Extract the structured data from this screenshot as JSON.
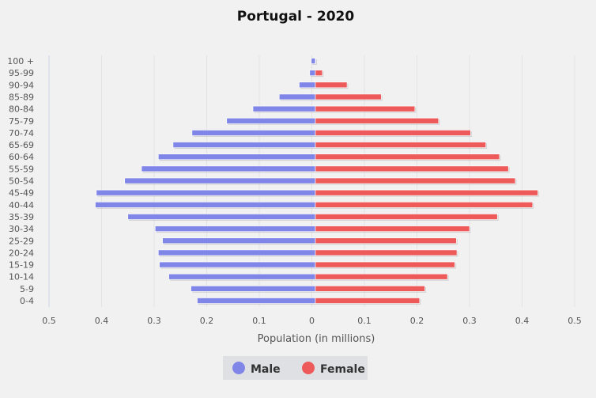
{
  "chart_data": {
    "type": "bar",
    "orientation": "horizontal",
    "layout": "population-pyramid",
    "title": "Portugal - 2020",
    "xlabel": "Population (in millions)",
    "ylabel": "",
    "xlim": [
      -0.5,
      0.5
    ],
    "x_ticks": [
      -0.5,
      -0.4,
      -0.3,
      -0.2,
      -0.1,
      0,
      0.1,
      0.2,
      0.3,
      0.4,
      0.5
    ],
    "x_tick_labels": [
      "0.5",
      "0.4",
      "0.3",
      "0.2",
      "0.1",
      "0",
      "0.1",
      "0.2",
      "0.3",
      "0.4",
      "0.5"
    ],
    "grid": true,
    "legend_position": "bottom",
    "categories": [
      "100 +",
      "95-99",
      "90-94",
      "85-89",
      "80-84",
      "75-79",
      "70-74",
      "65-69",
      "60-64",
      "55-59",
      "50-54",
      "45-49",
      "40-44",
      "35-39",
      "30-34",
      "25-29",
      "20-24",
      "15-19",
      "10-14",
      "5-9",
      "0-4"
    ],
    "series": [
      {
        "name": "Male",
        "color": "#8086e8",
        "values": [
          0.001,
          0.004,
          0.024,
          0.062,
          0.112,
          0.162,
          0.228,
          0.264,
          0.292,
          0.324,
          0.356,
          0.41,
          0.412,
          0.35,
          0.298,
          0.284,
          0.292,
          0.29,
          0.272,
          0.23,
          0.218
        ]
      },
      {
        "name": "Female",
        "color": "#ee5a5a",
        "values": [
          0.004,
          0.02,
          0.067,
          0.132,
          0.196,
          0.241,
          0.302,
          0.331,
          0.357,
          0.374,
          0.387,
          0.43,
          0.42,
          0.353,
          0.3,
          0.275,
          0.276,
          0.272,
          0.258,
          0.215,
          0.205
        ]
      }
    ]
  }
}
